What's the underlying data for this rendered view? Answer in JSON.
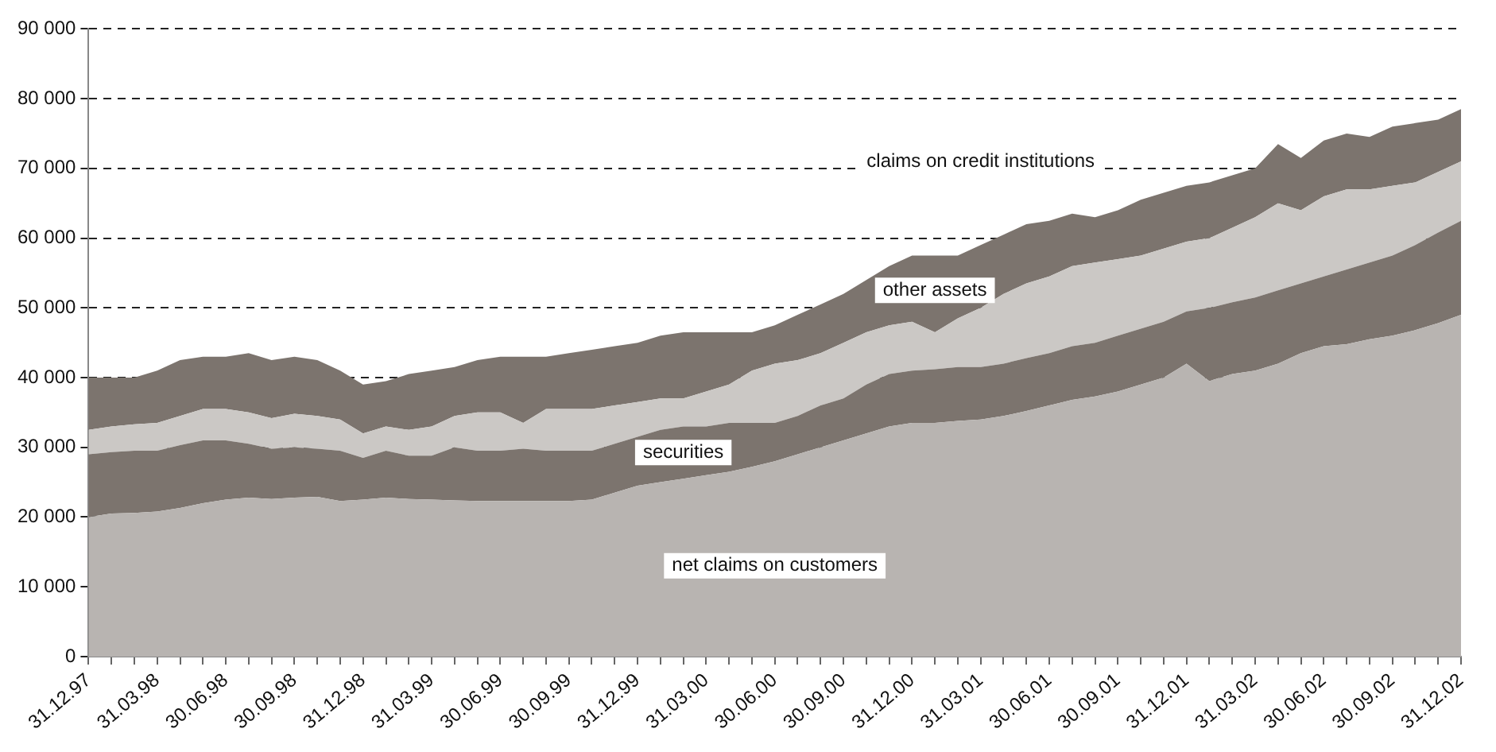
{
  "chart_data": {
    "type": "area",
    "stacked": true,
    "grid": "y",
    "legend": false,
    "categories": [
      "31.12.97",
      null,
      null,
      "31.03.98",
      null,
      null,
      "30.06.98",
      null,
      null,
      "30.09.98",
      null,
      null,
      "31.12.98",
      null,
      null,
      "31.03.99",
      null,
      null,
      "30.06.99",
      null,
      null,
      "30.09.99",
      null,
      null,
      "31.12.99",
      null,
      null,
      "31.03.00",
      null,
      null,
      "30.06.00",
      null,
      null,
      "30.09.00",
      null,
      null,
      "31.12.00",
      null,
      null,
      "31.03.01",
      null,
      null,
      "30.06.01",
      null,
      null,
      "30.09.01",
      null,
      null,
      "31.12.01",
      null,
      null,
      "31.03.02",
      null,
      null,
      "30.06.02",
      null,
      null,
      "30.09.02",
      null,
      null,
      "31.12.02"
    ],
    "ylim": [
      0,
      90000
    ],
    "yticks": [
      {
        "value": 0,
        "label": "0"
      },
      {
        "value": 10000,
        "label": "10 000"
      },
      {
        "value": 20000,
        "label": "20 000"
      },
      {
        "value": 30000,
        "label": "30 000"
      },
      {
        "value": 40000,
        "label": "40 000"
      },
      {
        "value": 50000,
        "label": "50 000"
      },
      {
        "value": 60000,
        "label": "60 000"
      },
      {
        "value": 70000,
        "label": "70 000"
      },
      {
        "value": 80000,
        "label": "80 000"
      },
      {
        "value": 90000,
        "label": "90 000"
      }
    ],
    "series": [
      {
        "color": "#b8b4b1",
        "values": [
          20000,
          20500,
          20600,
          20800,
          21300,
          22000,
          22500,
          22800,
          22600,
          22800,
          22900,
          22300,
          22500,
          22800,
          22600,
          22500,
          22400,
          22300,
          22300,
          22300,
          22300,
          22300,
          22500,
          23500,
          24500,
          25000,
          25500,
          26000,
          26500,
          27200,
          28000,
          29000,
          30000,
          31000,
          32000,
          33000,
          33500,
          33500,
          33800,
          34000,
          34500,
          35200,
          36000,
          36800,
          37300,
          38000,
          39000,
          40000,
          42000,
          39500,
          40500,
          41000,
          42000,
          43500,
          44500,
          44800,
          45500,
          46000,
          46800,
          47800,
          49000
        ]
      },
      {
        "color": "#7c746e",
        "values": [
          9000,
          8800,
          8900,
          8700,
          9000,
          9000,
          8500,
          7700,
          7200,
          7200,
          6900,
          7200,
          6000,
          6700,
          6200,
          6300,
          7600,
          7200,
          7200,
          7500,
          7200,
          7200,
          7000,
          7000,
          7000,
          7500,
          7500,
          7000,
          7000,
          6300,
          5500,
          5500,
          6000,
          6000,
          7000,
          7500,
          7500,
          7700,
          7700,
          7500,
          7500,
          7600,
          7500,
          7700,
          7700,
          8000,
          8000,
          8000,
          7500,
          10500,
          10300,
          10500,
          10500,
          10000,
          10000,
          10700,
          11000,
          11500,
          12200,
          13000,
          13500
        ]
      },
      {
        "color": "#cbc8c5",
        "values": [
          3500,
          3700,
          3800,
          4000,
          4200,
          4500,
          4500,
          4500,
          4400,
          4800,
          4700,
          4500,
          3500,
          3500,
          3700,
          4200,
          4500,
          5500,
          5500,
          3700,
          6000,
          6000,
          6000,
          5500,
          5000,
          4500,
          4000,
          5000,
          5500,
          7500,
          8500,
          8000,
          7500,
          8000,
          7500,
          7000,
          7000,
          5300,
          7000,
          8500,
          10000,
          10700,
          11000,
          11500,
          11500,
          11000,
          10500,
          10500,
          10000,
          10000,
          10700,
          11500,
          12500,
          10500,
          11500,
          11500,
          10500,
          10000,
          9000,
          8700,
          8500
        ]
      },
      {
        "color": "#7c746e",
        "values": [
          7500,
          7000,
          6700,
          7500,
          8000,
          7500,
          7500,
          8500,
          8300,
          8200,
          8000,
          7000,
          7000,
          6500,
          8000,
          8000,
          7000,
          7500,
          8000,
          9500,
          7500,
          8000,
          8500,
          8500,
          8500,
          9000,
          9500,
          8500,
          7500,
          5500,
          5500,
          6500,
          7000,
          7000,
          7500,
          8500,
          9500,
          11000,
          9000,
          9000,
          8500,
          8500,
          8000,
          7500,
          6500,
          7000,
          8000,
          8000,
          8000,
          8000,
          7500,
          7000,
          8500,
          7500,
          8000,
          8000,
          7500,
          8500,
          8500,
          7500,
          7500
        ]
      }
    ],
    "annotations": [
      "net claims on customers",
      "securities",
      "other assets",
      "claims on credit institutions"
    ]
  }
}
